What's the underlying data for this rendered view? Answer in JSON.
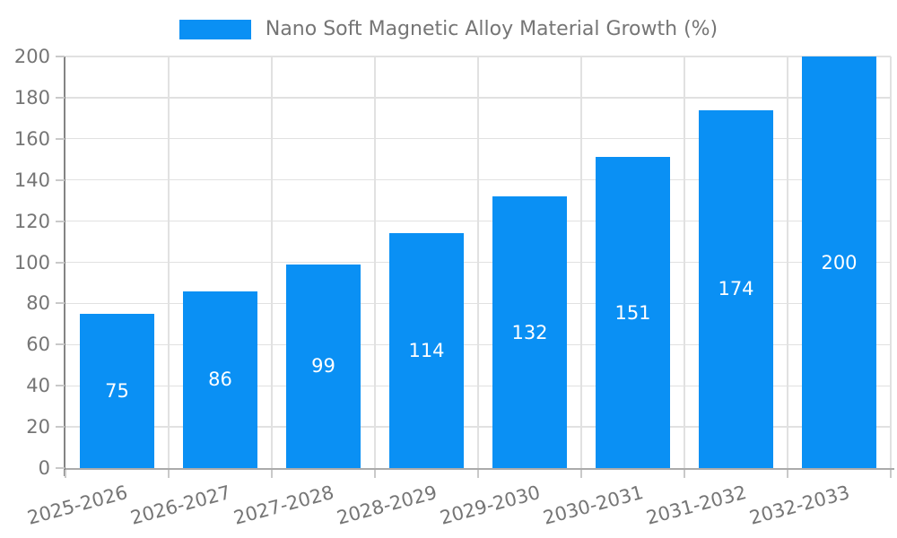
{
  "chart_data": {
    "type": "bar",
    "title": "Nano Soft Magnetic Alloy Material Growth (%)",
    "legend_entries": [
      "Nano Soft Magnetic Alloy Material Growth (%)"
    ],
    "legend_position": "top-center",
    "categories": [
      "2025-2026",
      "2026-2027",
      "2027-2028",
      "2028-2029",
      "2029-2030",
      "2030-2031",
      "2031-2032",
      "2032-2033"
    ],
    "values": [
      75,
      86,
      99,
      114,
      132,
      151,
      174,
      200
    ],
    "xlabel": "",
    "ylabel": "",
    "ylim": [
      0,
      200
    ],
    "y_ticks": [
      0,
      20,
      40,
      60,
      80,
      100,
      120,
      140,
      160,
      180,
      200
    ],
    "grid": true,
    "x_tick_label_rotation_deg": -15,
    "bar_color": "#0a90f4",
    "value_label_color": "#ffffff",
    "tick_label_color": "#757575"
  }
}
